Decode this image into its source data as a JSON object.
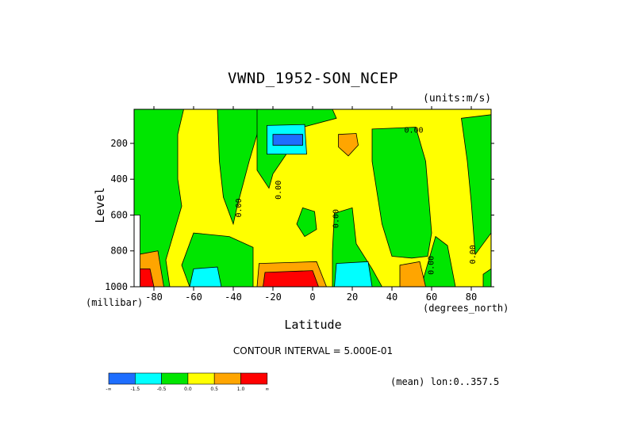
{
  "chart_data": {
    "type": "heatmap",
    "title": "VWND_1952-SON_NCEP",
    "units_label": "(units:m/s)",
    "xlabel": "Latitude",
    "x_unit_label": "(degrees_north)",
    "ylabel": "Level",
    "y_unit_label": "(millibar)",
    "xlim": [
      -90,
      90
    ],
    "ylim": [
      1000,
      10
    ],
    "x_ticks": [
      {
        "value": -80,
        "label": "-80"
      },
      {
        "value": -60,
        "label": "-60"
      },
      {
        "value": -40,
        "label": "-40"
      },
      {
        "value": -20,
        "label": "-20"
      },
      {
        "value": 0,
        "label": "0"
      },
      {
        "value": 20,
        "label": "20"
      },
      {
        "value": 40,
        "label": "40"
      },
      {
        "value": 60,
        "label": "60"
      },
      {
        "value": 80,
        "label": "80"
      }
    ],
    "y_ticks": [
      {
        "value": 200,
        "label": "200"
      },
      {
        "value": 400,
        "label": "400"
      },
      {
        "value": 600,
        "label": "600"
      },
      {
        "value": 800,
        "label": "800"
      },
      {
        "value": 1000,
        "label": "1000"
      }
    ],
    "contour_interval_text": "CONTOUR INTERVAL = 5.000E-01",
    "mean_text": "(mean) lon:0..357.5",
    "contour_labels": [
      {
        "text": "0.00",
        "lat": 51,
        "lev": 140,
        "rotate": 0
      },
      {
        "text": "0.00",
        "lat": -36,
        "lev": 560,
        "rotate": -90
      },
      {
        "text": "0.00",
        "lat": -16,
        "lev": 460,
        "rotate": -90
      },
      {
        "text": "0.00",
        "lat": 13,
        "lev": 620,
        "rotate": -90
      },
      {
        "text": "0.00",
        "lat": 61,
        "lev": 880,
        "rotate": -90
      },
      {
        "text": "0.00",
        "lat": 82,
        "lev": 820,
        "rotate": -90
      }
    ],
    "legend": {
      "colors": [
        "#1e6eff",
        "#00ffff",
        "#00e600",
        "#ffff00",
        "#ffa500",
        "#ff0000"
      ],
      "labels": [
        "-∞",
        "-1.5",
        "-0.5",
        "0.0",
        "0.5",
        "1.0",
        "∞"
      ]
    },
    "regions": [
      {
        "color": "#ffff00",
        "pts": [
          [
            -90,
            10
          ],
          [
            90,
            10
          ],
          [
            90,
            1000
          ],
          [
            -90,
            1000
          ]
        ]
      },
      {
        "color": "#00e600",
        "pts": [
          [
            -90,
            10
          ],
          [
            -65,
            10
          ],
          [
            -68,
            150
          ],
          [
            -68,
            400
          ],
          [
            -66,
            550
          ],
          [
            -70,
            700
          ],
          [
            -74,
            850
          ],
          [
            -72,
            1000
          ],
          [
            -90,
            1000
          ]
        ]
      },
      {
        "color": "#00e600",
        "pts": [
          [
            -48,
            10
          ],
          [
            -25,
            10
          ],
          [
            -28,
            150
          ],
          [
            -32,
            300
          ],
          [
            -38,
            550
          ],
          [
            -40,
            650
          ],
          [
            -45,
            500
          ],
          [
            -47,
            300
          ]
        ]
      },
      {
        "color": "#00e600",
        "pts": [
          [
            -28,
            10
          ],
          [
            10,
            10
          ],
          [
            12,
            60
          ],
          [
            -5,
            110
          ],
          [
            -12,
            240
          ],
          [
            -20,
            370
          ],
          [
            -22,
            450
          ],
          [
            -28,
            350
          ]
        ]
      },
      {
        "color": "#00e600",
        "pts": [
          [
            30,
            120
          ],
          [
            52,
            110
          ],
          [
            57,
            300
          ],
          [
            60,
            700
          ],
          [
            58,
            830
          ],
          [
            50,
            840
          ],
          [
            40,
            830
          ],
          [
            35,
            650
          ],
          [
            30,
            300
          ]
        ]
      },
      {
        "color": "#00e600",
        "pts": [
          [
            75,
            60
          ],
          [
            90,
            40
          ],
          [
            90,
            700
          ],
          [
            82,
            820
          ],
          [
            80,
            530
          ],
          [
            78,
            300
          ]
        ]
      },
      {
        "color": "#00e600",
        "pts": [
          [
            -60,
            700
          ],
          [
            -42,
            720
          ],
          [
            -30,
            780
          ],
          [
            -30,
            1000
          ],
          [
            -62,
            1000
          ],
          [
            -66,
            880
          ]
        ]
      },
      {
        "color": "#00e600",
        "pts": [
          [
            -5,
            560
          ],
          [
            1,
            580
          ],
          [
            2,
            680
          ],
          [
            -4,
            720
          ],
          [
            -8,
            650
          ]
        ]
      },
      {
        "color": "#00e600",
        "pts": [
          [
            11,
            590
          ],
          [
            20,
            560
          ],
          [
            22,
            760
          ],
          [
            30,
            900
          ],
          [
            35,
            1000
          ],
          [
            10,
            1000
          ],
          [
            10,
            800
          ]
        ]
      },
      {
        "color": "#00e600",
        "pts": [
          [
            56,
            950
          ],
          [
            62,
            720
          ],
          [
            68,
            770
          ],
          [
            72,
            1000
          ],
          [
            55,
            1000
          ]
        ]
      },
      {
        "color": "#00e600",
        "pts": [
          [
            86,
            930
          ],
          [
            90,
            900
          ],
          [
            90,
            1000
          ],
          [
            86,
            1000
          ]
        ]
      },
      {
        "color": "#00ffff",
        "pts": [
          [
            -23,
            100
          ],
          [
            -4,
            95
          ],
          [
            -3,
            260
          ],
          [
            -23,
            260
          ]
        ]
      },
      {
        "color": "#1e6eff",
        "pts": [
          [
            -20,
            150
          ],
          [
            -5,
            150
          ],
          [
            -5,
            210
          ],
          [
            -20,
            210
          ]
        ]
      },
      {
        "color": "#ffa500",
        "pts": [
          [
            13,
            150
          ],
          [
            22,
            145
          ],
          [
            23,
            210
          ],
          [
            18,
            270
          ],
          [
            13,
            220
          ]
        ]
      },
      {
        "color": "#00ffff",
        "pts": [
          [
            -60,
            900
          ],
          [
            -48,
            890
          ],
          [
            -46,
            1000
          ],
          [
            -62,
            1000
          ]
        ]
      },
      {
        "color": "#00ffff",
        "pts": [
          [
            12,
            870
          ],
          [
            28,
            860
          ],
          [
            30,
            1000
          ],
          [
            11,
            1000
          ]
        ]
      },
      {
        "color": "#ffa500",
        "pts": [
          [
            -27,
            870
          ],
          [
            2,
            860
          ],
          [
            7,
            1000
          ],
          [
            -28,
            1000
          ]
        ]
      },
      {
        "color": "#ff0000",
        "pts": [
          [
            -24,
            920
          ],
          [
            0,
            910
          ],
          [
            3,
            1000
          ],
          [
            -25,
            1000
          ]
        ]
      },
      {
        "color": "#ffa500",
        "pts": [
          [
            44,
            880
          ],
          [
            54,
            860
          ],
          [
            57,
            1000
          ],
          [
            44,
            1000
          ]
        ]
      },
      {
        "color": "#ffa500",
        "pts": [
          [
            -88,
            820
          ],
          [
            -78,
            800
          ],
          [
            -75,
            1000
          ],
          [
            -88,
            1000
          ]
        ]
      },
      {
        "color": "#ff0000",
        "pts": [
          [
            -87,
            900
          ],
          [
            -82,
            900
          ],
          [
            -80,
            1000
          ],
          [
            -87,
            1000
          ]
        ]
      },
      {
        "color": "#ffffff",
        "pts": [
          [
            -90,
            600
          ],
          [
            -87,
            600
          ],
          [
            -87,
            1000
          ],
          [
            -90,
            1000
          ]
        ]
      }
    ]
  }
}
